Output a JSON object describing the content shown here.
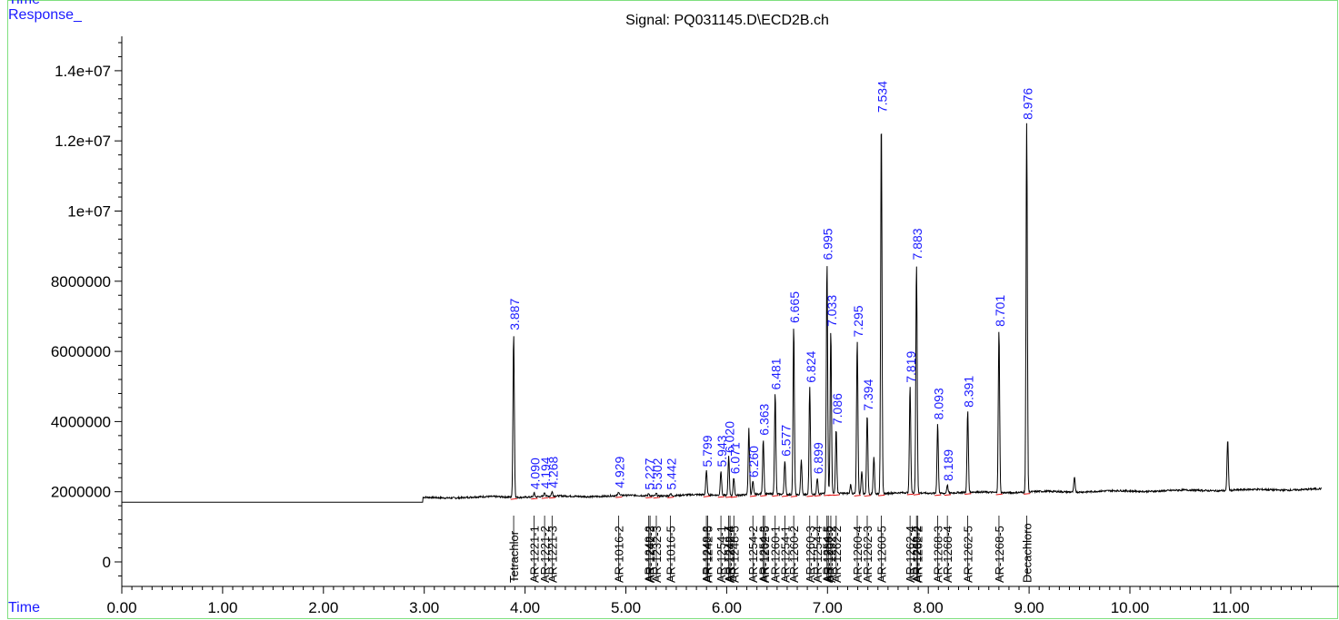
{
  "header": {
    "top_label": "Time",
    "response_label": "Response_",
    "time_label": "Time"
  },
  "chart_data": {
    "type": "line",
    "title": "Signal: PQ031145.D\\ECD2B.ch",
    "xlabel": "Time",
    "ylabel": "Response_",
    "xlim": [
      0.0,
      11.9
    ],
    "ylim": [
      -700000,
      15200000
    ],
    "x_ticks": [
      "0.00",
      "1.00",
      "2.00",
      "3.00",
      "4.00",
      "5.00",
      "6.00",
      "7.00",
      "8.00",
      "9.00",
      "10.00",
      "11.00"
    ],
    "y_ticks": [
      "0",
      "2000000",
      "4000000",
      "6000000",
      "8000000",
      "1e+07",
      "1.2e+07",
      "1.4e+07"
    ],
    "y_tick_values": [
      0,
      2000000,
      4000000,
      6000000,
      8000000,
      10000000,
      12000000,
      14000000
    ],
    "colors": {
      "trace": "#000000",
      "peak_label": "#1a1aff",
      "baseline": "#e01010",
      "frame": "#7fe07f"
    },
    "peaks": [
      {
        "rt": 3.887,
        "label": "3.887",
        "height": 6500000
      },
      {
        "rt": 4.09,
        "label": "4.090",
        "height": 1960000
      },
      {
        "rt": 4.194,
        "label": "4.194",
        "height": 1980000
      },
      {
        "rt": 4.268,
        "label": "4.268",
        "height": 2000000
      },
      {
        "rt": 4.929,
        "label": "4.929",
        "height": 2000000
      },
      {
        "rt": 5.227,
        "label": "5.227",
        "height": 1950000
      },
      {
        "rt": 5.302,
        "label": "5.302",
        "height": 1950000
      },
      {
        "rt": 5.442,
        "label": "5.442",
        "height": 1950000
      },
      {
        "rt": 5.799,
        "label": "5.799",
        "height": 2600000
      },
      {
        "rt": 5.943,
        "label": "5.943",
        "height": 2600000
      },
      {
        "rt": 6.02,
        "label": "6.020",
        "height": 3000000
      },
      {
        "rt": 6.071,
        "label": "6.071",
        "height": 2400000
      },
      {
        "rt": 6.26,
        "label": "6.260",
        "height": 2300000
      },
      {
        "rt": 6.363,
        "label": "6.363",
        "height": 3500000
      },
      {
        "rt": 6.481,
        "label": "6.481",
        "height": 4800000
      },
      {
        "rt": 6.577,
        "label": "6.577",
        "height": 2900000
      },
      {
        "rt": 6.665,
        "label": "6.665",
        "height": 6700000
      },
      {
        "rt": 6.824,
        "label": "6.824",
        "height": 5000000
      },
      {
        "rt": 6.899,
        "label": "6.899",
        "height": 2400000
      },
      {
        "rt": 6.995,
        "label": "6.995",
        "height": 8500000
      },
      {
        "rt": 7.033,
        "label": "7.033",
        "height": 6600000
      },
      {
        "rt": 7.086,
        "label": "7.086",
        "height": 3800000
      },
      {
        "rt": 7.295,
        "label": "7.295",
        "height": 6300000
      },
      {
        "rt": 7.394,
        "label": "7.394",
        "height": 4200000
      },
      {
        "rt": 7.534,
        "label": "7.534",
        "height": 12700000
      },
      {
        "rt": 7.819,
        "label": "7.819",
        "height": 5000000
      },
      {
        "rt": 7.883,
        "label": "7.883",
        "height": 8500000
      },
      {
        "rt": 8.093,
        "label": "8.093",
        "height": 3950000
      },
      {
        "rt": 8.189,
        "label": "8.189",
        "height": 2200000
      },
      {
        "rt": 8.391,
        "label": "8.391",
        "height": 4300000
      },
      {
        "rt": 8.701,
        "label": "8.701",
        "height": 6600000
      },
      {
        "rt": 8.976,
        "label": "8.976",
        "height": 12500000
      }
    ],
    "unlabeled_peaks": [
      {
        "rt": 6.22,
        "height": 3800000
      },
      {
        "rt": 6.74,
        "height": 2900000
      },
      {
        "rt": 7.23,
        "height": 2200000
      },
      {
        "rt": 7.34,
        "height": 2600000
      },
      {
        "rt": 7.46,
        "height": 3000000
      },
      {
        "rt": 9.45,
        "height": 2400000
      },
      {
        "rt": 10.97,
        "height": 3500000
      }
    ],
    "compound_labels": [
      {
        "rt": 3.887,
        "text": "Tetrachlor"
      },
      {
        "rt": 4.09,
        "text": "AR-1221-1"
      },
      {
        "rt": 4.194,
        "text": "AR-1221-2"
      },
      {
        "rt": 4.268,
        "text": "AR-1221-3"
      },
      {
        "rt": 4.929,
        "text": "AR-1016-2"
      },
      {
        "rt": 5.227,
        "text": "AR-1248-2"
      },
      {
        "rt": 5.24,
        "text": "AR-1242-3"
      },
      {
        "rt": 5.302,
        "text": "AR-1232-3"
      },
      {
        "rt": 5.442,
        "text": "AR-1016-5"
      },
      {
        "rt": 5.799,
        "text": "AR-1248-3"
      },
      {
        "rt": 5.812,
        "text": "AR-1242-5"
      },
      {
        "rt": 5.943,
        "text": "AR-1254-1"
      },
      {
        "rt": 6.02,
        "text": "AR-1248-4"
      },
      {
        "rt": 6.033,
        "text": "AR-1242-4"
      },
      {
        "rt": 6.071,
        "text": "AR-1248-5"
      },
      {
        "rt": 6.26,
        "text": "AR-1254-2"
      },
      {
        "rt": 6.363,
        "text": "AR-1254-3"
      },
      {
        "rt": 6.376,
        "text": "AR-1262-5"
      },
      {
        "rt": 6.481,
        "text": "AR-1260-1"
      },
      {
        "rt": 6.577,
        "text": "AR-1254-1"
      },
      {
        "rt": 6.665,
        "text": "AR-1260-2"
      },
      {
        "rt": 6.824,
        "text": "AR-1260-3"
      },
      {
        "rt": 6.899,
        "text": "AR-1254-4"
      },
      {
        "rt": 6.995,
        "text": "AR-1254-5"
      },
      {
        "rt": 7.008,
        "text": "AR-1260-5"
      },
      {
        "rt": 7.033,
        "text": "AR-1262-2"
      },
      {
        "rt": 7.086,
        "text": "AR-1262-2"
      },
      {
        "rt": 7.295,
        "text": "AR-1260-4"
      },
      {
        "rt": 7.394,
        "text": "AR-1262-3"
      },
      {
        "rt": 7.534,
        "text": "AR-1260-5"
      },
      {
        "rt": 7.819,
        "text": "AR-1262-4"
      },
      {
        "rt": 7.883,
        "text": "AR-1268-2"
      },
      {
        "rt": 7.896,
        "text": "AR-1262-2"
      },
      {
        "rt": 8.093,
        "text": "AR-1268-3"
      },
      {
        "rt": 8.189,
        "text": "AR-1268-4"
      },
      {
        "rt": 8.391,
        "text": "AR-1262-5"
      },
      {
        "rt": 8.701,
        "text": "AR-1268-5"
      },
      {
        "rt": 8.976,
        "text": "Decachloro"
      }
    ],
    "grid": false
  }
}
